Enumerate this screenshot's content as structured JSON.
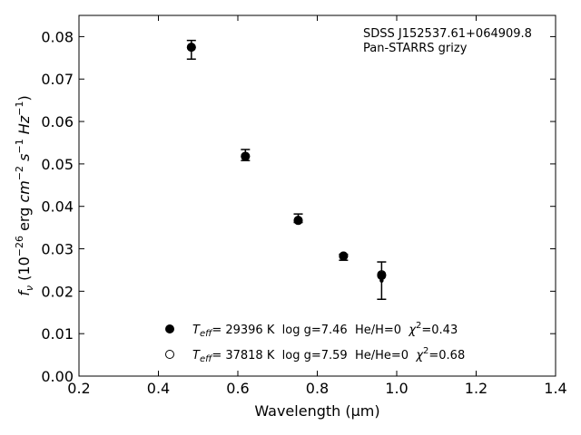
{
  "chart_data": {
    "type": "scatter",
    "title": "",
    "annotation_lines": [
      "SDSS J152537.61+064909.8",
      "Pan-STARRS grizy"
    ],
    "xlabel": "Wavelength (μm)",
    "ylabel": "fν (10−26 erg cm−2 s−1 Hz−1)",
    "xlim": [
      0.2,
      1.4
    ],
    "ylim": [
      0.0,
      0.085
    ],
    "xticks": [
      0.2,
      0.4,
      0.6,
      0.8,
      1.0,
      1.2,
      1.4
    ],
    "yticks": [
      0.0,
      0.01,
      0.02,
      0.03,
      0.04,
      0.05,
      0.06,
      0.07,
      0.08
    ],
    "xtick_labels": [
      "0.2",
      "0.4",
      "0.6",
      "0.8",
      "1.0",
      "1.2",
      "1.4"
    ],
    "ytick_labels": [
      "0.00",
      "0.01",
      "0.02",
      "0.03",
      "0.04",
      "0.05",
      "0.06",
      "0.07",
      "0.08"
    ],
    "grid": false,
    "legend_position": "lower-center",
    "observed": {
      "x": [
        0.483,
        0.619,
        0.752,
        0.866,
        0.962
      ],
      "y": [
        0.0769,
        0.0521,
        0.0372,
        0.028,
        0.0225
      ],
      "yerr": [
        0.0022,
        0.0013,
        0.001,
        0.0007,
        0.0044
      ]
    },
    "series": [
      {
        "name": "Teff= 29396 K  log g=7.46  He/H=0  χ2=0.43",
        "marker": "filled-circle",
        "color": "#000000",
        "x": [
          0.483,
          0.619,
          0.752,
          0.866,
          0.962
        ],
        "y": [
          0.0775,
          0.0518,
          0.0367,
          0.0283,
          0.0237
        ]
      },
      {
        "name": "Teff= 37818 K  log g=7.59  He/He=0  χ2=0.68",
        "marker": "open-circle",
        "color": "#000000",
        "x": [
          0.483,
          0.619,
          0.752,
          0.866,
          0.962
        ],
        "y": [
          0.0775,
          0.0518,
          0.0367,
          0.0283,
          0.0239
        ]
      }
    ],
    "legend": [
      {
        "teff_value": "= 29396 K",
        "rest": "  log g=7.46  He/H=0  ",
        "chi_value": "=0.43",
        "marker": "filled-circle"
      },
      {
        "teff_value": "= 37818 K",
        "rest": "  log g=7.59  He/He=0  ",
        "chi_value": "=0.68",
        "marker": "open-circle"
      }
    ]
  }
}
